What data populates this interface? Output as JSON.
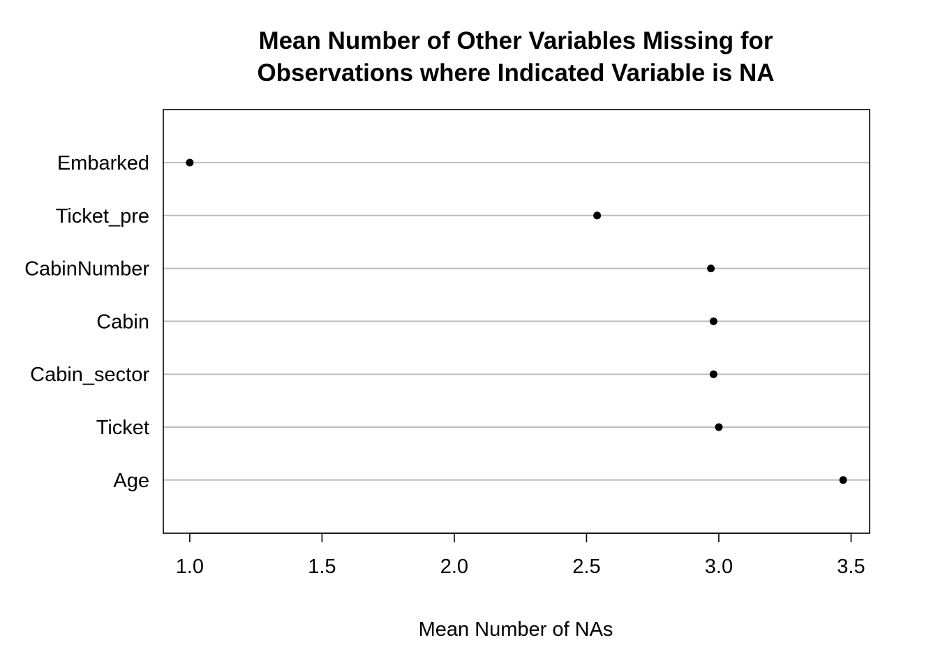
{
  "chart_data": {
    "type": "scatter",
    "title_lines": [
      "Mean Number of Other Variables Missing for",
      "Observations where Indicated Variable is NA"
    ],
    "xlabel": "Mean Number of NAs",
    "ylabel": "",
    "xlim": [
      0.9,
      3.57
    ],
    "x_ticks": [
      1.0,
      1.5,
      2.0,
      2.5,
      3.0,
      3.5
    ],
    "x_tick_labels": [
      "1.0",
      "1.5",
      "2.0",
      "2.5",
      "3.0",
      "3.5"
    ],
    "grid": "horizontal",
    "categories": [
      "Embarked",
      "Ticket_pre",
      "CabinNumber",
      "Cabin",
      "Cabin_sector",
      "Ticket",
      "Age"
    ],
    "values": [
      1.0,
      2.54,
      2.97,
      2.98,
      2.98,
      3.0,
      3.47
    ],
    "colors": {
      "point": "#000000",
      "gridline": "#bebebe",
      "frame": "#000000"
    }
  }
}
